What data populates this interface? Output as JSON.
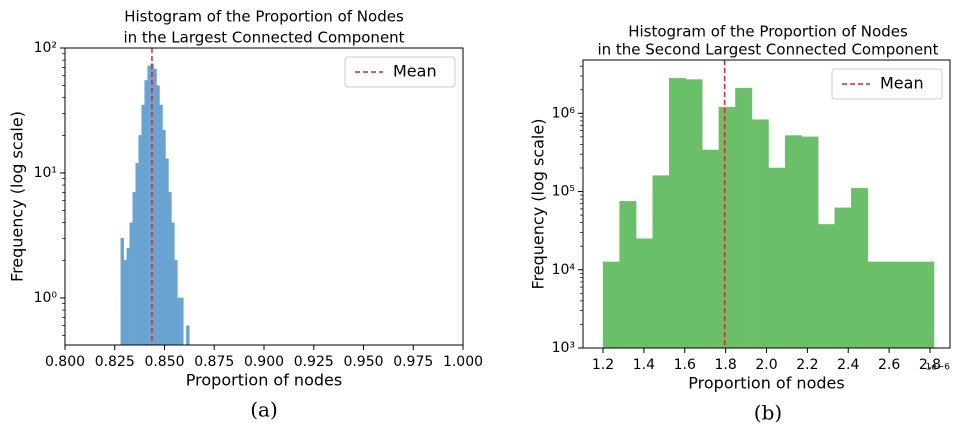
{
  "chart_data": [
    {
      "type": "histogram",
      "title": [
        "Histogram of the Proportion of Nodes",
        "in the Largest Connected Component"
      ],
      "xlabel": "Proportion of nodes",
      "ylabel": "Frequency (log scale)",
      "caption": "(a)",
      "bins": [
        0.828,
        0.8295,
        0.831,
        0.8325,
        0.834,
        0.8355,
        0.837,
        0.8385,
        0.84,
        0.8415,
        0.843,
        0.8445,
        0.846,
        0.8475,
        0.849,
        0.8505,
        0.852,
        0.8535,
        0.855,
        0.8565,
        0.858,
        0.8595,
        0.861,
        0.8625
      ],
      "counts": [
        3,
        2,
        2.5,
        4,
        7,
        12,
        20,
        35,
        55,
        72,
        75,
        68,
        50,
        35,
        22,
        13,
        7,
        4,
        2,
        1,
        1,
        0,
        0.6
      ],
      "color": "#69a3d2",
      "mean": {
        "name": "Mean",
        "value": 0.8437,
        "color": "#d62728"
      },
      "legend": "upper right",
      "xlim": [
        0.8,
        1.0
      ],
      "xticks": [
        {
          "value": 0.8,
          "label": "0.800"
        },
        {
          "value": 0.825,
          "label": "0.825"
        },
        {
          "value": 0.85,
          "label": "0.850"
        },
        {
          "value": 0.875,
          "label": "0.875"
        },
        {
          "value": 0.9,
          "label": "0.900"
        },
        {
          "value": 0.925,
          "label": "0.925"
        },
        {
          "value": 0.95,
          "label": "0.950"
        },
        {
          "value": 0.975,
          "label": "0.975"
        },
        {
          "value": 1.0,
          "label": "1.000"
        }
      ],
      "ylim": [
        0.42,
        100
      ],
      "ylog": true,
      "yticks": [
        {
          "value": 1,
          "label": "10⁰"
        },
        {
          "value": 10,
          "label": "10¹"
        },
        {
          "value": 100,
          "label": "10²"
        }
      ]
    },
    {
      "type": "histogram",
      "title": [
        "Histogram of the Proportion of Nodes",
        "in the Second Largest Connected Component"
      ],
      "xlabel": "Proportion of nodes",
      "ylabel": "Frequency (log scale)",
      "caption": "(b)",
      "x_offset_label": "1e−6",
      "bins": [
        1.2,
        1.281,
        1.362,
        1.443,
        1.524,
        1.605,
        1.686,
        1.767,
        1.848,
        1.929,
        2.01,
        2.091,
        2.172,
        2.253,
        2.334,
        2.415,
        2.496,
        2.577,
        2.658,
        2.739,
        2.82
      ],
      "counts": [
        12600,
        75000,
        25000,
        160000,
        2800000,
        2700000,
        340000,
        1200000,
        2100000,
        830000,
        200000,
        520000,
        500000,
        38000,
        62000,
        110000,
        12600,
        12600,
        12600,
        12600
      ],
      "color": "#6abf69",
      "mean": {
        "name": "Mean",
        "value": 1.795,
        "color": "#d62728"
      },
      "legend": "upper right",
      "xlim": [
        1.102,
        2.898
      ],
      "xticks": [
        1.2,
        1.4,
        1.6,
        1.8,
        {
          "value": 2.0,
          "label": "2.0"
        },
        2.2,
        2.4,
        2.6,
        2.8
      ],
      "ylim": [
        1000,
        4800000
      ],
      "ylog": true,
      "yticks": [
        {
          "value": 1000,
          "label": "10³"
        },
        {
          "value": 10000,
          "label": "10⁴"
        },
        {
          "value": 100000,
          "label": "10⁵"
        },
        {
          "value": 1000000,
          "label": "10⁶"
        }
      ]
    }
  ]
}
